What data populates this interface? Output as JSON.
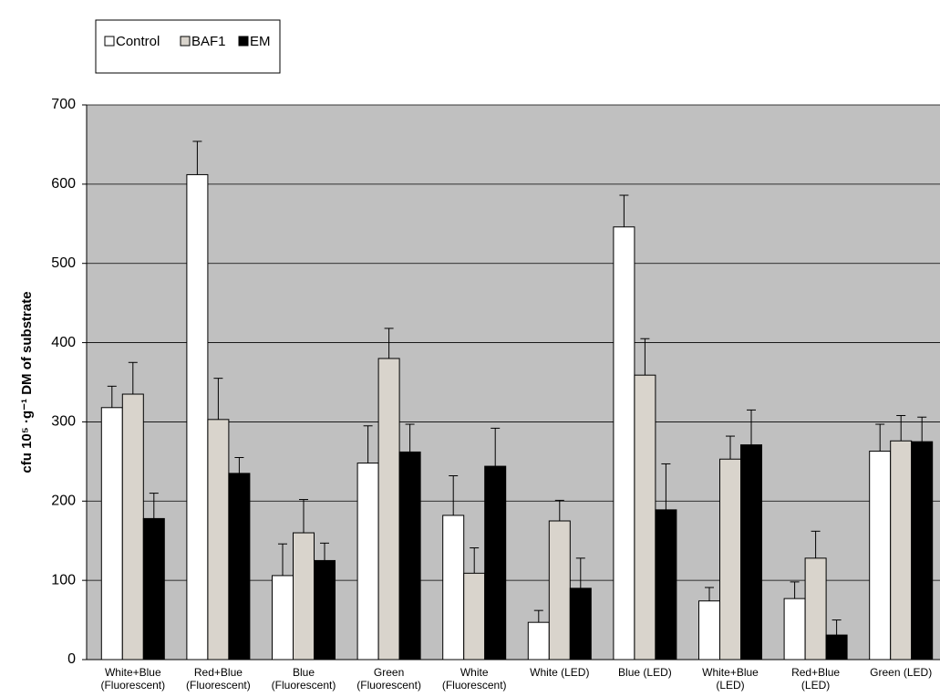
{
  "chart_data": {
    "type": "bar",
    "y_label": "cfu 10⁵ ·g⁻¹ DM of substrate",
    "categories": [
      "White+Blue\n(Fluorescent)",
      "Red+Blue\n(Fluorescent)",
      "Blue\n(Fluorescent)",
      "Green\n(Fluorescent)",
      "White\n(Fluorescent)",
      "White (LED)",
      "Blue (LED)",
      "White+Blue\n(LED)",
      "Red+Blue\n(LED)",
      "Green (LED)"
    ],
    "series": [
      {
        "name": "Control",
        "color": "#ffffff",
        "values": [
          318,
          612,
          106,
          248,
          182,
          47,
          546,
          74,
          77,
          263
        ],
        "errors": [
          27,
          42,
          40,
          47,
          50,
          15,
          40,
          17,
          21,
          34
        ]
      },
      {
        "name": "BAF1",
        "color": "#d9d4cc",
        "values": [
          335,
          303,
          160,
          380,
          109,
          175,
          359,
          253,
          128,
          276
        ],
        "errors": [
          40,
          52,
          42,
          38,
          32,
          26,
          46,
          29,
          34,
          32
        ]
      },
      {
        "name": "EM",
        "color": "#000000",
        "values": [
          178,
          235,
          125,
          262,
          244,
          90,
          189,
          271,
          31,
          275
        ],
        "errors": [
          32,
          20,
          22,
          35,
          48,
          38,
          58,
          44,
          19,
          31
        ]
      }
    ],
    "ylim": [
      0,
      700
    ],
    "yticks": [
      0,
      100,
      200,
      300,
      400,
      500,
      600,
      700
    ],
    "grid": true
  }
}
